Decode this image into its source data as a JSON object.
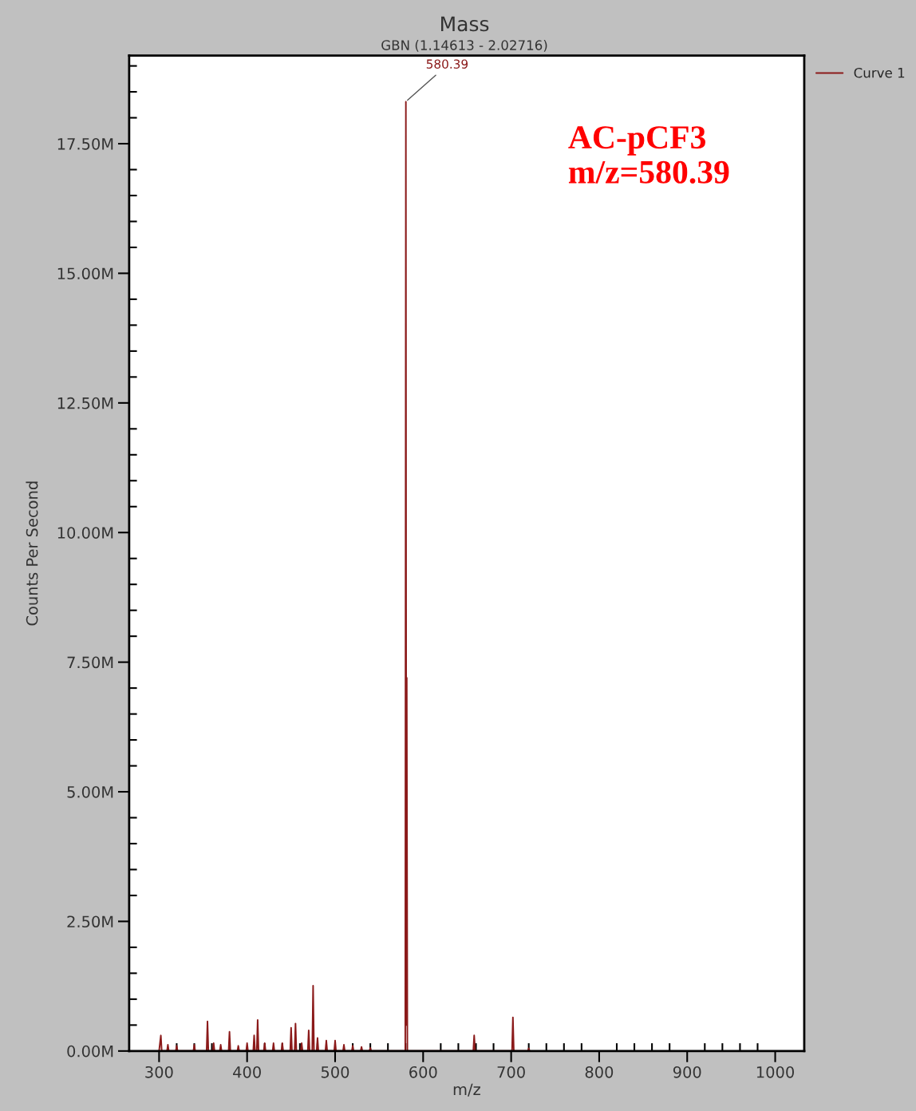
{
  "chart_data": {
    "type": "line",
    "title": "Mass",
    "subtitle": "GBN (1.14613 - 2.02716)",
    "xlabel": "m/z",
    "ylabel": "Counts Per Second",
    "annotations": [
      {
        "text": "580.39",
        "x": 580.39,
        "y": 18.31
      },
      "AC-pCF3\nm/z=580.39"
    ],
    "series": [
      {
        "name": "Curve 1",
        "color": "#8b1a1a",
        "x": [
          300.0,
          302,
          303,
          309,
          310,
          311,
          319,
          320,
          321,
          339,
          340,
          341,
          354,
          355,
          356,
          361,
          362,
          363,
          369,
          370,
          371,
          379,
          380,
          381,
          389,
          390,
          391,
          399,
          400,
          401,
          407,
          408,
          409,
          411,
          412,
          413,
          419,
          420,
          421,
          429,
          430,
          431,
          439,
          440,
          441,
          449,
          450,
          451,
          454,
          455,
          456,
          461,
          462,
          463,
          469,
          470,
          471,
          474,
          475,
          476,
          479,
          480,
          481,
          489,
          490,
          491,
          499,
          500,
          501,
          509,
          510,
          511,
          519,
          520,
          521,
          529,
          530,
          531,
          539,
          540,
          541,
          579.7,
          580.39,
          580.9,
          581.4,
          582.1,
          657,
          658,
          659,
          701,
          702,
          703,
          719,
          720,
          721
        ],
        "values": [
          0,
          0.3,
          0,
          0,
          0.12,
          0,
          0,
          0.1,
          0,
          0,
          0.12,
          0,
          0,
          0.57,
          0,
          0,
          0.15,
          0,
          0,
          0.12,
          0,
          0,
          0.37,
          0,
          0,
          0.1,
          0,
          0,
          0.15,
          0,
          0,
          0.3,
          0,
          0,
          0.6,
          0,
          0,
          0.15,
          0,
          0,
          0.15,
          0,
          0,
          0.15,
          0,
          0,
          0.45,
          0,
          0,
          0.53,
          0,
          0,
          0.15,
          0,
          0,
          0.4,
          0,
          0,
          1.26,
          0,
          0,
          0.25,
          0,
          0,
          0.2,
          0,
          0,
          0.2,
          0,
          0,
          0.12,
          0,
          0,
          0.1,
          0,
          0,
          0.08,
          0,
          0,
          0.06,
          0,
          0,
          18.31,
          0.5,
          7.2,
          0,
          0,
          0.3,
          0,
          0,
          0.65,
          0,
          0,
          0.05,
          0
        ]
      }
    ],
    "xlim": [
      266,
      1033
    ],
    "ylim": [
      0,
      19.2
    ],
    "xticks": [
      300,
      {
        "value": 320,
        "label": null
      },
      {
        "value": 340,
        "label": null
      },
      {
        "value": 360,
        "label": null
      },
      {
        "value": 380,
        "label": null
      },
      400,
      {
        "value": 420,
        "label": null
      },
      {
        "value": 440,
        "label": null
      },
      {
        "value": 460,
        "label": null
      },
      {
        "value": 480,
        "label": null
      },
      500,
      {
        "value": 520,
        "label": null
      },
      {
        "value": 540,
        "label": null
      },
      {
        "value": 560,
        "label": null
      },
      {
        "value": 580,
        "label": null
      },
      600,
      {
        "value": 620,
        "label": null
      },
      {
        "value": 640,
        "label": null
      },
      {
        "value": 660,
        "label": null
      },
      {
        "value": 680,
        "label": null
      },
      700,
      {
        "value": 720,
        "label": null
      },
      {
        "value": 740,
        "label": null
      },
      {
        "value": 760,
        "label": null
      },
      {
        "value": 780,
        "label": null
      },
      800,
      {
        "value": 820,
        "label": null
      },
      {
        "value": 840,
        "label": null
      },
      {
        "value": 860,
        "label": null
      },
      {
        "value": 880,
        "label": null
      },
      900,
      {
        "value": 920,
        "label": null
      },
      {
        "value": 940,
        "label": null
      },
      {
        "value": 960,
        "label": null
      },
      {
        "value": 980,
        "label": null
      },
      1000
    ],
    "yticks": [
      {
        "value": 0,
        "label": "0.00M"
      },
      {
        "value": 0.5,
        "label": null
      },
      {
        "value": 1.0,
        "label": null
      },
      {
        "value": 1.5,
        "label": null
      },
      {
        "value": 2.0,
        "label": null
      },
      {
        "value": 2.5,
        "label": "2.50M"
      },
      {
        "value": 3.0,
        "label": null
      },
      {
        "value": 3.5,
        "label": null
      },
      {
        "value": 4.0,
        "label": null
      },
      {
        "value": 4.5,
        "label": null
      },
      {
        "value": 5.0,
        "label": "5.00M"
      },
      {
        "value": 5.5,
        "label": null
      },
      {
        "value": 6.0,
        "label": null
      },
      {
        "value": 6.5,
        "label": null
      },
      {
        "value": 7.0,
        "label": null
      },
      {
        "value": 7.5,
        "label": "7.50M"
      },
      {
        "value": 8.0,
        "label": null
      },
      {
        "value": 8.5,
        "label": null
      },
      {
        "value": 9.0,
        "label": null
      },
      {
        "value": 9.5,
        "label": null
      },
      {
        "value": 10.0,
        "label": "10.00M"
      },
      {
        "value": 10.5,
        "label": null
      },
      {
        "value": 11.0,
        "label": null
      },
      {
        "value": 11.5,
        "label": null
      },
      {
        "value": 12.0,
        "label": null
      },
      {
        "value": 12.5,
        "label": "12.50M"
      },
      {
        "value": 13.0,
        "label": null
      },
      {
        "value": 13.5,
        "label": null
      },
      {
        "value": 14.0,
        "label": null
      },
      {
        "value": 14.5,
        "label": null
      },
      {
        "value": 15.0,
        "label": "15.00M"
      },
      {
        "value": 15.5,
        "label": null
      },
      {
        "value": 16.0,
        "label": null
      },
      {
        "value": 16.5,
        "label": null
      },
      {
        "value": 17.0,
        "label": null
      },
      {
        "value": 17.5,
        "label": "17.50M"
      },
      {
        "value": 18.0,
        "label": null
      },
      {
        "value": 18.5,
        "label": null
      },
      {
        "value": 19.0,
        "label": null
      }
    ],
    "grid": false,
    "legend": "top right",
    "marker": "none",
    "line_style": "solid"
  }
}
